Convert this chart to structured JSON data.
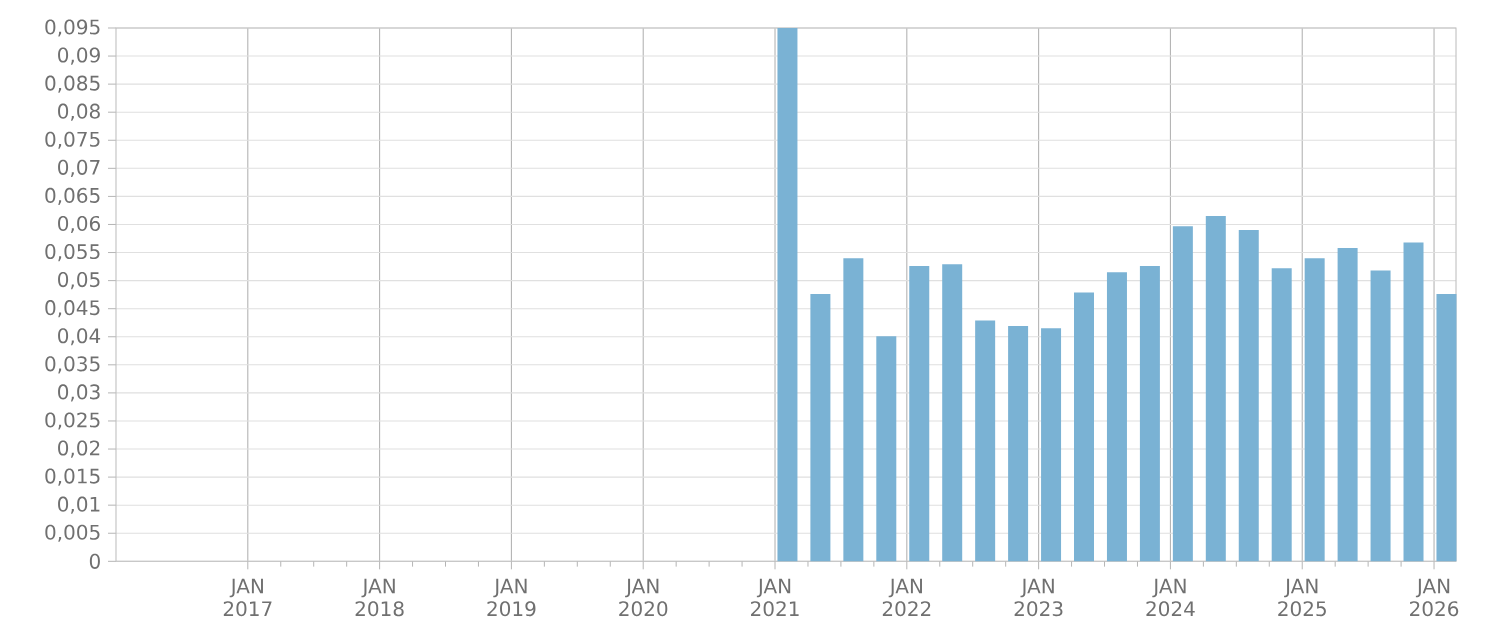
{
  "chart_data": {
    "type": "bar",
    "color": "#7ab2d4",
    "x": [
      "2021-02-05",
      "2021-05-05",
      "2021-08-05",
      "2021-11-05",
      "2022-02-05",
      "2022-05-05",
      "2022-08-05",
      "2022-11-05",
      "2023-02-05",
      "2023-05-05",
      "2023-08-05",
      "2023-11-05",
      "2024-02-05",
      "2024-05-05",
      "2024-08-05",
      "2024-11-05",
      "2025-02-05",
      "2025-05-05",
      "2025-08-05",
      "2025-11-05",
      "2026-02-05"
    ],
    "values": [
      0.095,
      0.0476,
      0.054,
      0.0401,
      0.0526,
      0.0529,
      0.0429,
      0.0419,
      0.0415,
      0.0479,
      0.0515,
      0.0526,
      0.0597,
      0.0615,
      0.059,
      0.0522,
      0.054,
      0.0558,
      0.0518,
      0.0568,
      0.0476
    ],
    "xlim": [
      "2016-01",
      "2026-03"
    ],
    "xticks": [
      {
        "value": "2017-01",
        "label": "JAN 2017"
      },
      {
        "value": "2018-01",
        "label": "JAN 2018"
      },
      {
        "value": "2019-01",
        "label": "JAN 2019"
      },
      {
        "value": "2020-01",
        "label": "JAN 2020"
      },
      {
        "value": "2021-01",
        "label": "JAN 2021"
      },
      {
        "value": "2022-01",
        "label": "JAN 2022"
      },
      {
        "value": "2023-01",
        "label": "JAN 2023"
      },
      {
        "value": "2024-01",
        "label": "JAN 2024"
      },
      {
        "value": "2025-01",
        "label": "JAN 2025"
      },
      {
        "value": "2026-01",
        "label": "JAN 2026"
      }
    ],
    "ylim": [
      0,
      0.095
    ],
    "yticks": [
      {
        "value": 0,
        "label": "0"
      },
      {
        "value": 0.005,
        "label": "0,005"
      },
      {
        "value": 0.01,
        "label": "0,01"
      },
      {
        "value": 0.015,
        "label": "0,015"
      },
      {
        "value": 0.02,
        "label": "0,02"
      },
      {
        "value": 0.025,
        "label": "0,025"
      },
      {
        "value": 0.03,
        "label": "0,03"
      },
      {
        "value": 0.035,
        "label": "0,035"
      },
      {
        "value": 0.04,
        "label": "0,04"
      },
      {
        "value": 0.045,
        "label": "0,045"
      },
      {
        "value": 0.05,
        "label": "0,05"
      },
      {
        "value": 0.055,
        "label": "0,055"
      },
      {
        "value": 0.06,
        "label": "0,06"
      },
      {
        "value": 0.065,
        "label": "0,065"
      },
      {
        "value": 0.07,
        "label": "0,07"
      },
      {
        "value": 0.075,
        "label": "0,075"
      },
      {
        "value": 0.08,
        "label": "0,08"
      },
      {
        "value": 0.085,
        "label": "0,085"
      },
      {
        "value": 0.09,
        "label": "0,09"
      },
      {
        "value": 0.095,
        "label": "0,095"
      }
    ],
    "grid": true
  }
}
